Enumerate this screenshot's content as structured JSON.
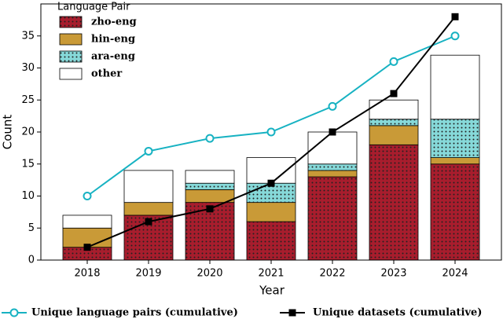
{
  "chart_data": {
    "type": "bar",
    "stacked": true,
    "x_label": "Year",
    "y_label": "Count",
    "legend_title": "Language Pair",
    "legend": "upper left",
    "categories": [
      "2018",
      "2019",
      "2020",
      "2021",
      "2022",
      "2023",
      "2024"
    ],
    "ylim": [
      0,
      40
    ],
    "yticks": [
      0,
      5,
      10,
      15,
      20,
      25,
      30,
      35
    ],
    "series": [
      {
        "name": "zho-eng",
        "color": "#a81d2d",
        "hatch": "dots",
        "values": [
          2,
          7,
          9,
          6,
          13,
          18,
          15
        ]
      },
      {
        "name": "hin-eng",
        "color": "#c99a37",
        "values": [
          3,
          2,
          2,
          3,
          1,
          3,
          1
        ]
      },
      {
        "name": "ara-eng",
        "color": "#86d9d9",
        "hatch": "dots",
        "values": [
          0,
          0,
          1,
          3,
          1,
          1,
          6
        ]
      },
      {
        "name": "other",
        "color": "#ffffff",
        "values": [
          2,
          5,
          2,
          4,
          5,
          3,
          10
        ]
      }
    ],
    "lines": [
      {
        "name": "Unique language pairs (cumulative)",
        "color": "#17b2c2",
        "marker": "circle",
        "values": [
          10,
          17,
          19,
          20,
          24,
          31,
          35
        ]
      },
      {
        "name": "Unique datasets (cumulative)",
        "color": "#000000",
        "marker": "square",
        "values": [
          2,
          6,
          8,
          12,
          20,
          26,
          38
        ]
      }
    ]
  }
}
